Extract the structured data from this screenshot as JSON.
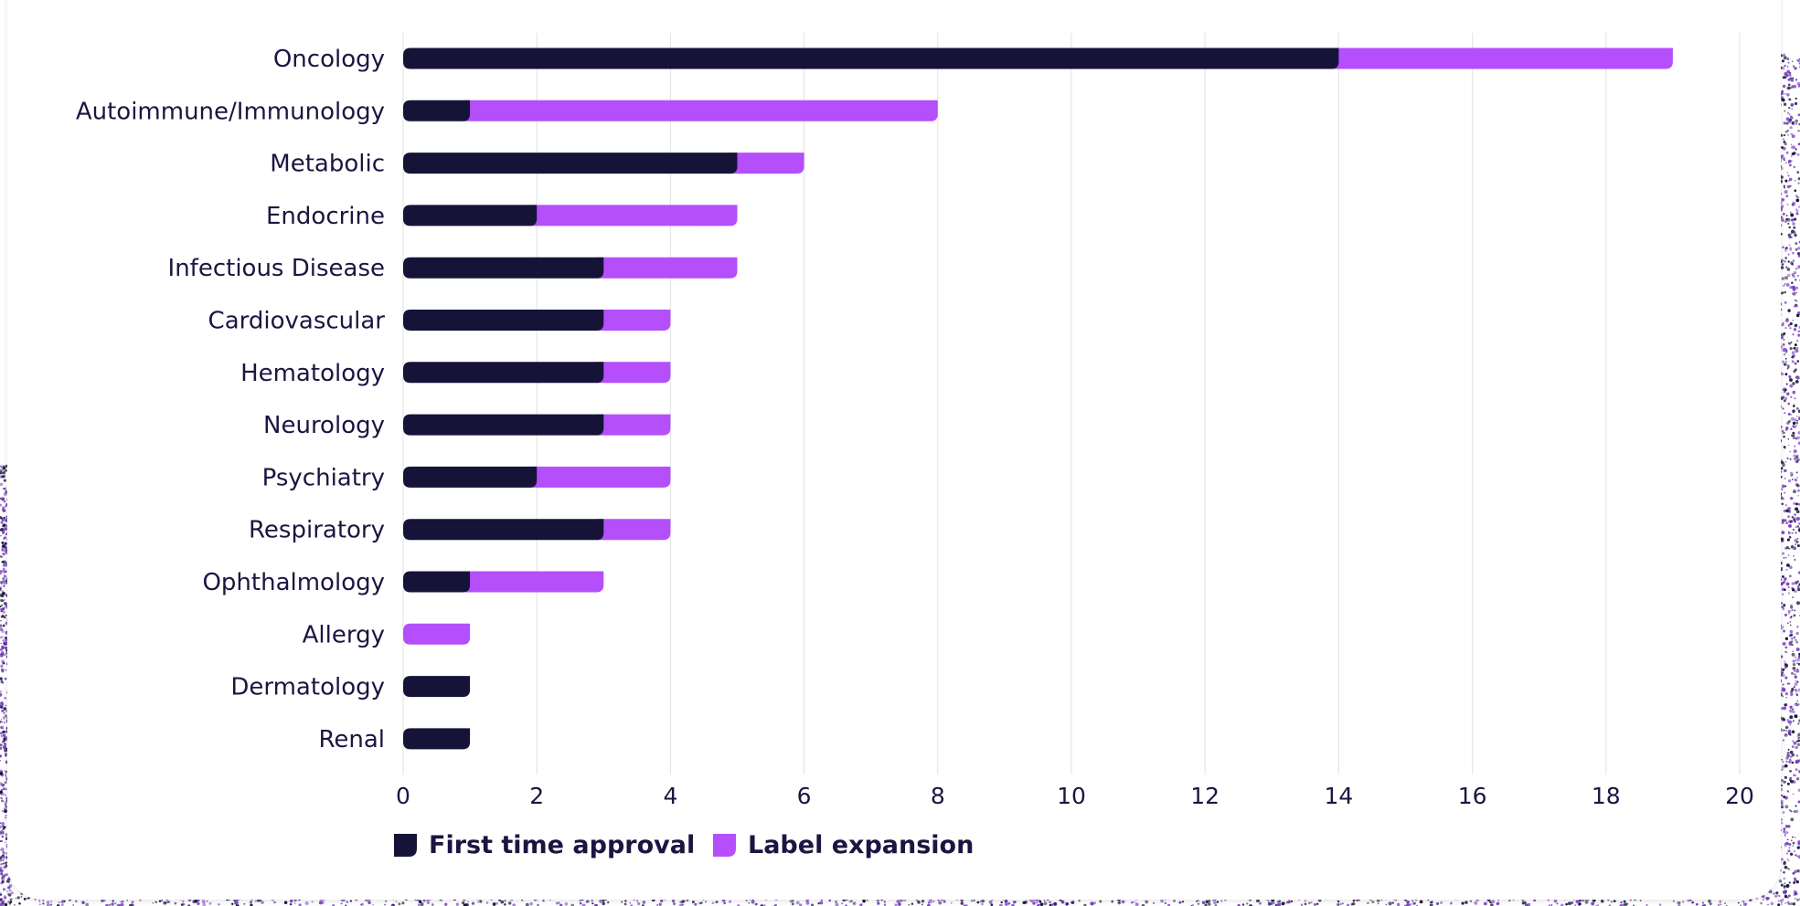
{
  "colors": {
    "first_time_approval": "#151438",
    "label_expansion": "#b44ffb",
    "text": "#1a1641",
    "grid": "#e6e6e6",
    "speckle": "#7a3fc2"
  },
  "chart_data": {
    "type": "bar",
    "orientation": "horizontal",
    "stacked": true,
    "categories": [
      "Oncology",
      "Autoimmune/Immunology",
      "Metabolic",
      "Endocrine",
      "Infectious Disease",
      "Cardiovascular",
      "Hematology",
      "Neurology",
      "Psychiatry",
      "Respiratory",
      "Ophthalmology",
      "Allergy",
      "Dermatology",
      "Renal"
    ],
    "series": [
      {
        "name": "First time approval",
        "values": [
          14,
          1,
          5,
          2,
          3,
          3,
          3,
          3,
          2,
          3,
          1,
          0,
          1,
          1
        ]
      },
      {
        "name": "Label expansion",
        "values": [
          5,
          7,
          1,
          3,
          2,
          1,
          1,
          1,
          2,
          1,
          2,
          1,
          0,
          0
        ]
      }
    ],
    "xlim": [
      0,
      20
    ],
    "xticks": [
      "0",
      "2",
      "4",
      "6",
      "8",
      "10",
      "12",
      "14",
      "16",
      "18",
      "20"
    ],
    "grid": "vertical",
    "legend_position": "bottom-left"
  }
}
